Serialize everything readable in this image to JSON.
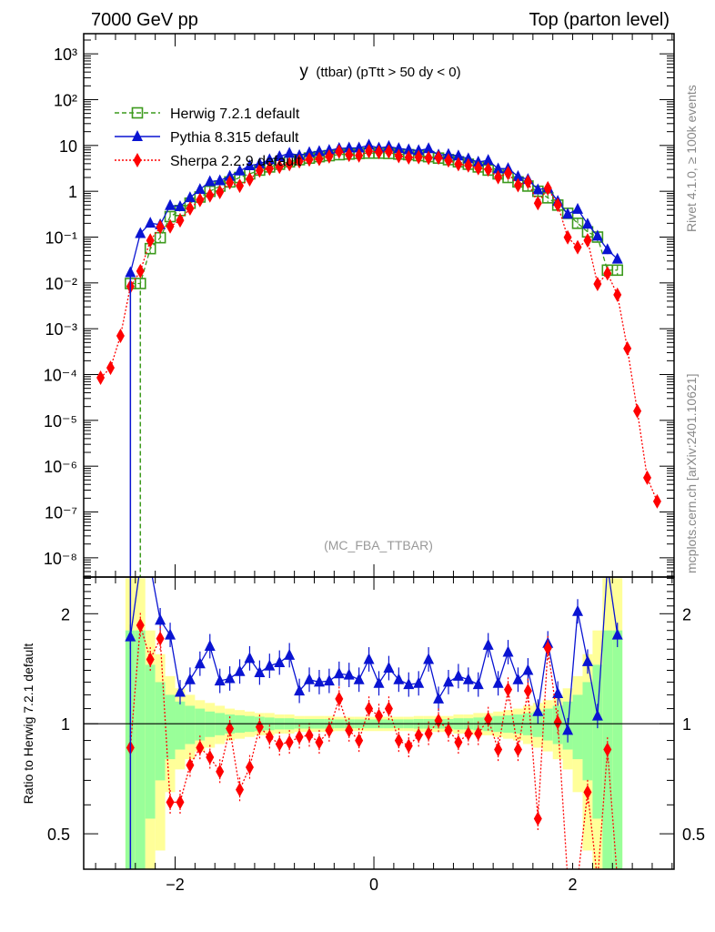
{
  "header": {
    "left": "7000 GeV pp",
    "right": "Top (parton level)"
  },
  "side_labels": {
    "rivet": "Rivet 4.1.0, ≥ 100k events",
    "mcplots": "mcplots.cern.ch [arXiv:2401.10621]"
  },
  "chart_data": {
    "type": "line",
    "title_main": "y",
    "title_rest": "(ttbar) (pTtt > 50 dy < 0)",
    "analysis_label": "(MC_FBA_TTBAR)",
    "ylabel_ratio": "Ratio to Herwig 7.2.1 default",
    "xlim": [
      -2.92,
      3.02
    ],
    "ylim_upper_log10": [
      -8.42,
      3.44
    ],
    "ylim_ratio": [
      0.4,
      2.52
    ],
    "y_scale": "log",
    "legend_position": "top-left",
    "x_ticks": [
      {
        "v": -2,
        "label": "−2"
      },
      {
        "v": 0,
        "label": "0"
      },
      {
        "v": 2,
        "label": "2"
      }
    ],
    "y_ticks_upper": [
      {
        "e": 3,
        "label": "10³"
      },
      {
        "e": 2,
        "label": "10²"
      },
      {
        "e": 1,
        "label": "10"
      },
      {
        "e": 0,
        "label": "1"
      },
      {
        "e": -1,
        "label": "10⁻¹"
      },
      {
        "e": -2,
        "label": "10⁻²"
      },
      {
        "e": -3,
        "label": "10⁻³"
      },
      {
        "e": -4,
        "label": "10⁻⁴"
      },
      {
        "e": -5,
        "label": "10⁻⁵"
      },
      {
        "e": -6,
        "label": "10⁻⁶"
      },
      {
        "e": -7,
        "label": "10⁻⁷"
      },
      {
        "e": -8,
        "label": "10⁻⁸"
      }
    ],
    "y_ticks_ratio": [
      {
        "v": 2,
        "label": "2"
      },
      {
        "v": 1,
        "label": "1"
      },
      {
        "v": 0.5,
        "label": "0.5"
      }
    ],
    "x": [
      -2.45,
      -2.35,
      -2.25,
      -2.15,
      -2.05,
      -1.95,
      -1.85,
      -1.75,
      -1.65,
      -1.55,
      -1.45,
      -1.35,
      -1.25,
      -1.15,
      -1.05,
      -0.95,
      -0.85,
      -0.75,
      -0.65,
      -0.55,
      -0.45,
      -0.35,
      -0.25,
      -0.15,
      -0.05,
      0.05,
      0.15,
      0.25,
      0.35,
      0.45,
      0.55,
      0.65,
      0.75,
      0.85,
      0.95,
      1.05,
      1.15,
      1.25,
      1.35,
      1.45,
      1.55,
      1.65,
      1.75,
      1.85,
      1.95,
      2.05,
      2.15,
      2.25,
      2.35,
      2.45
    ],
    "series": [
      {
        "name": "Herwig 7.2.1 default",
        "color": "#3c9a1c",
        "marker": "open-square",
        "line": "dashed",
        "values": [
          0.0097,
          0.0097,
          0.056,
          0.097,
          0.28,
          0.38,
          0.55,
          0.75,
          1.0,
          1.3,
          1.6,
          2.0,
          2.4,
          2.9,
          3.4,
          3.9,
          4.4,
          4.9,
          5.3,
          5.7,
          6.0,
          6.3,
          6.5,
          6.7,
          6.8,
          6.8,
          6.7,
          6.5,
          6.3,
          6.0,
          5.7,
          5.3,
          4.9,
          4.4,
          3.9,
          3.4,
          2.9,
          2.4,
          2.0,
          1.6,
          1.3,
          1.0,
          0.72,
          0.5,
          0.33,
          0.2,
          0.13,
          0.1,
          0.019,
          0.019
        ]
      },
      {
        "name": "Pythia 8.315 default",
        "color": "#0a14d2",
        "marker": "triangle",
        "line": "solid",
        "ratio": [
          1.73,
          12.4,
          3.6,
          1.92,
          1.75,
          1.22,
          1.32,
          1.46,
          1.63,
          1.31,
          1.33,
          1.39,
          1.51,
          1.38,
          1.44,
          1.47,
          1.54,
          1.23,
          1.32,
          1.3,
          1.31,
          1.37,
          1.36,
          1.32,
          1.5,
          1.29,
          1.42,
          1.32,
          1.28,
          1.29,
          1.5,
          1.17,
          1.3,
          1.35,
          1.32,
          1.28,
          1.64,
          1.29,
          1.57,
          1.32,
          1.4,
          1.08,
          1.66,
          1.21,
          0.96,
          2.03,
          1.48,
          1.05,
          2.8,
          1.75
        ]
      },
      {
        "name": "Sherpa 2.2.9 default",
        "color": "#ff0000",
        "marker": "diamond",
        "line": "dotted",
        "ratio": [
          0.86,
          1.86,
          1.5,
          1.71,
          0.61,
          0.61,
          0.77,
          0.86,
          0.81,
          0.74,
          0.97,
          0.66,
          0.76,
          0.98,
          0.92,
          0.88,
          0.89,
          0.92,
          0.93,
          0.89,
          0.96,
          1.17,
          0.96,
          0.9,
          1.1,
          1.05,
          1.1,
          0.9,
          0.87,
          0.93,
          0.94,
          1.02,
          0.96,
          0.89,
          0.94,
          0.94,
          1.03,
          0.85,
          1.24,
          0.85,
          1.23,
          0.55,
          1.61,
          1.01,
          0.3,
          0.3,
          0.65,
          0.095,
          0.85,
          0.29
        ],
        "tail_left": {
          "x": [
            -2.75,
            -2.65,
            -2.55
          ],
          "values": [
            8.5e-05,
            0.00014,
            0.0007
          ]
        },
        "tail_right": {
          "x": [
            2.55,
            2.65,
            2.75,
            2.85
          ],
          "values": [
            0.00037,
            1.6e-05,
            5.6e-07,
            1.7e-07
          ]
        }
      }
    ],
    "uncertainty_band": {
      "reference": "Herwig 7.2.1 default",
      "yellow_total_rel": [
        1.5,
        1.5,
        0.8,
        0.55,
        0.35,
        0.25,
        0.2,
        0.16,
        0.14,
        0.12,
        0.1,
        0.09,
        0.08,
        0.07,
        0.07,
        0.06,
        0.06,
        0.05,
        0.05,
        0.05,
        0.05,
        0.045,
        0.045,
        0.045,
        0.045,
        0.045,
        0.045,
        0.045,
        0.045,
        0.05,
        0.05,
        0.05,
        0.05,
        0.06,
        0.06,
        0.07,
        0.07,
        0.08,
        0.09,
        0.1,
        0.12,
        0.14,
        0.16,
        0.2,
        0.25,
        0.35,
        0.55,
        0.8,
        1.5,
        1.5
      ],
      "green_stat_rel": [
        0.8,
        0.8,
        0.45,
        0.3,
        0.2,
        0.15,
        0.12,
        0.1,
        0.08,
        0.07,
        0.06,
        0.055,
        0.05,
        0.045,
        0.04,
        0.035,
        0.035,
        0.03,
        0.03,
        0.03,
        0.03,
        0.028,
        0.028,
        0.028,
        0.028,
        0.028,
        0.028,
        0.028,
        0.028,
        0.03,
        0.03,
        0.03,
        0.03,
        0.035,
        0.035,
        0.04,
        0.045,
        0.05,
        0.055,
        0.06,
        0.07,
        0.08,
        0.1,
        0.12,
        0.15,
        0.2,
        0.3,
        0.45,
        0.8,
        0.8
      ],
      "yellow_color": "#ffff99",
      "green_color": "#99ff99"
    }
  }
}
